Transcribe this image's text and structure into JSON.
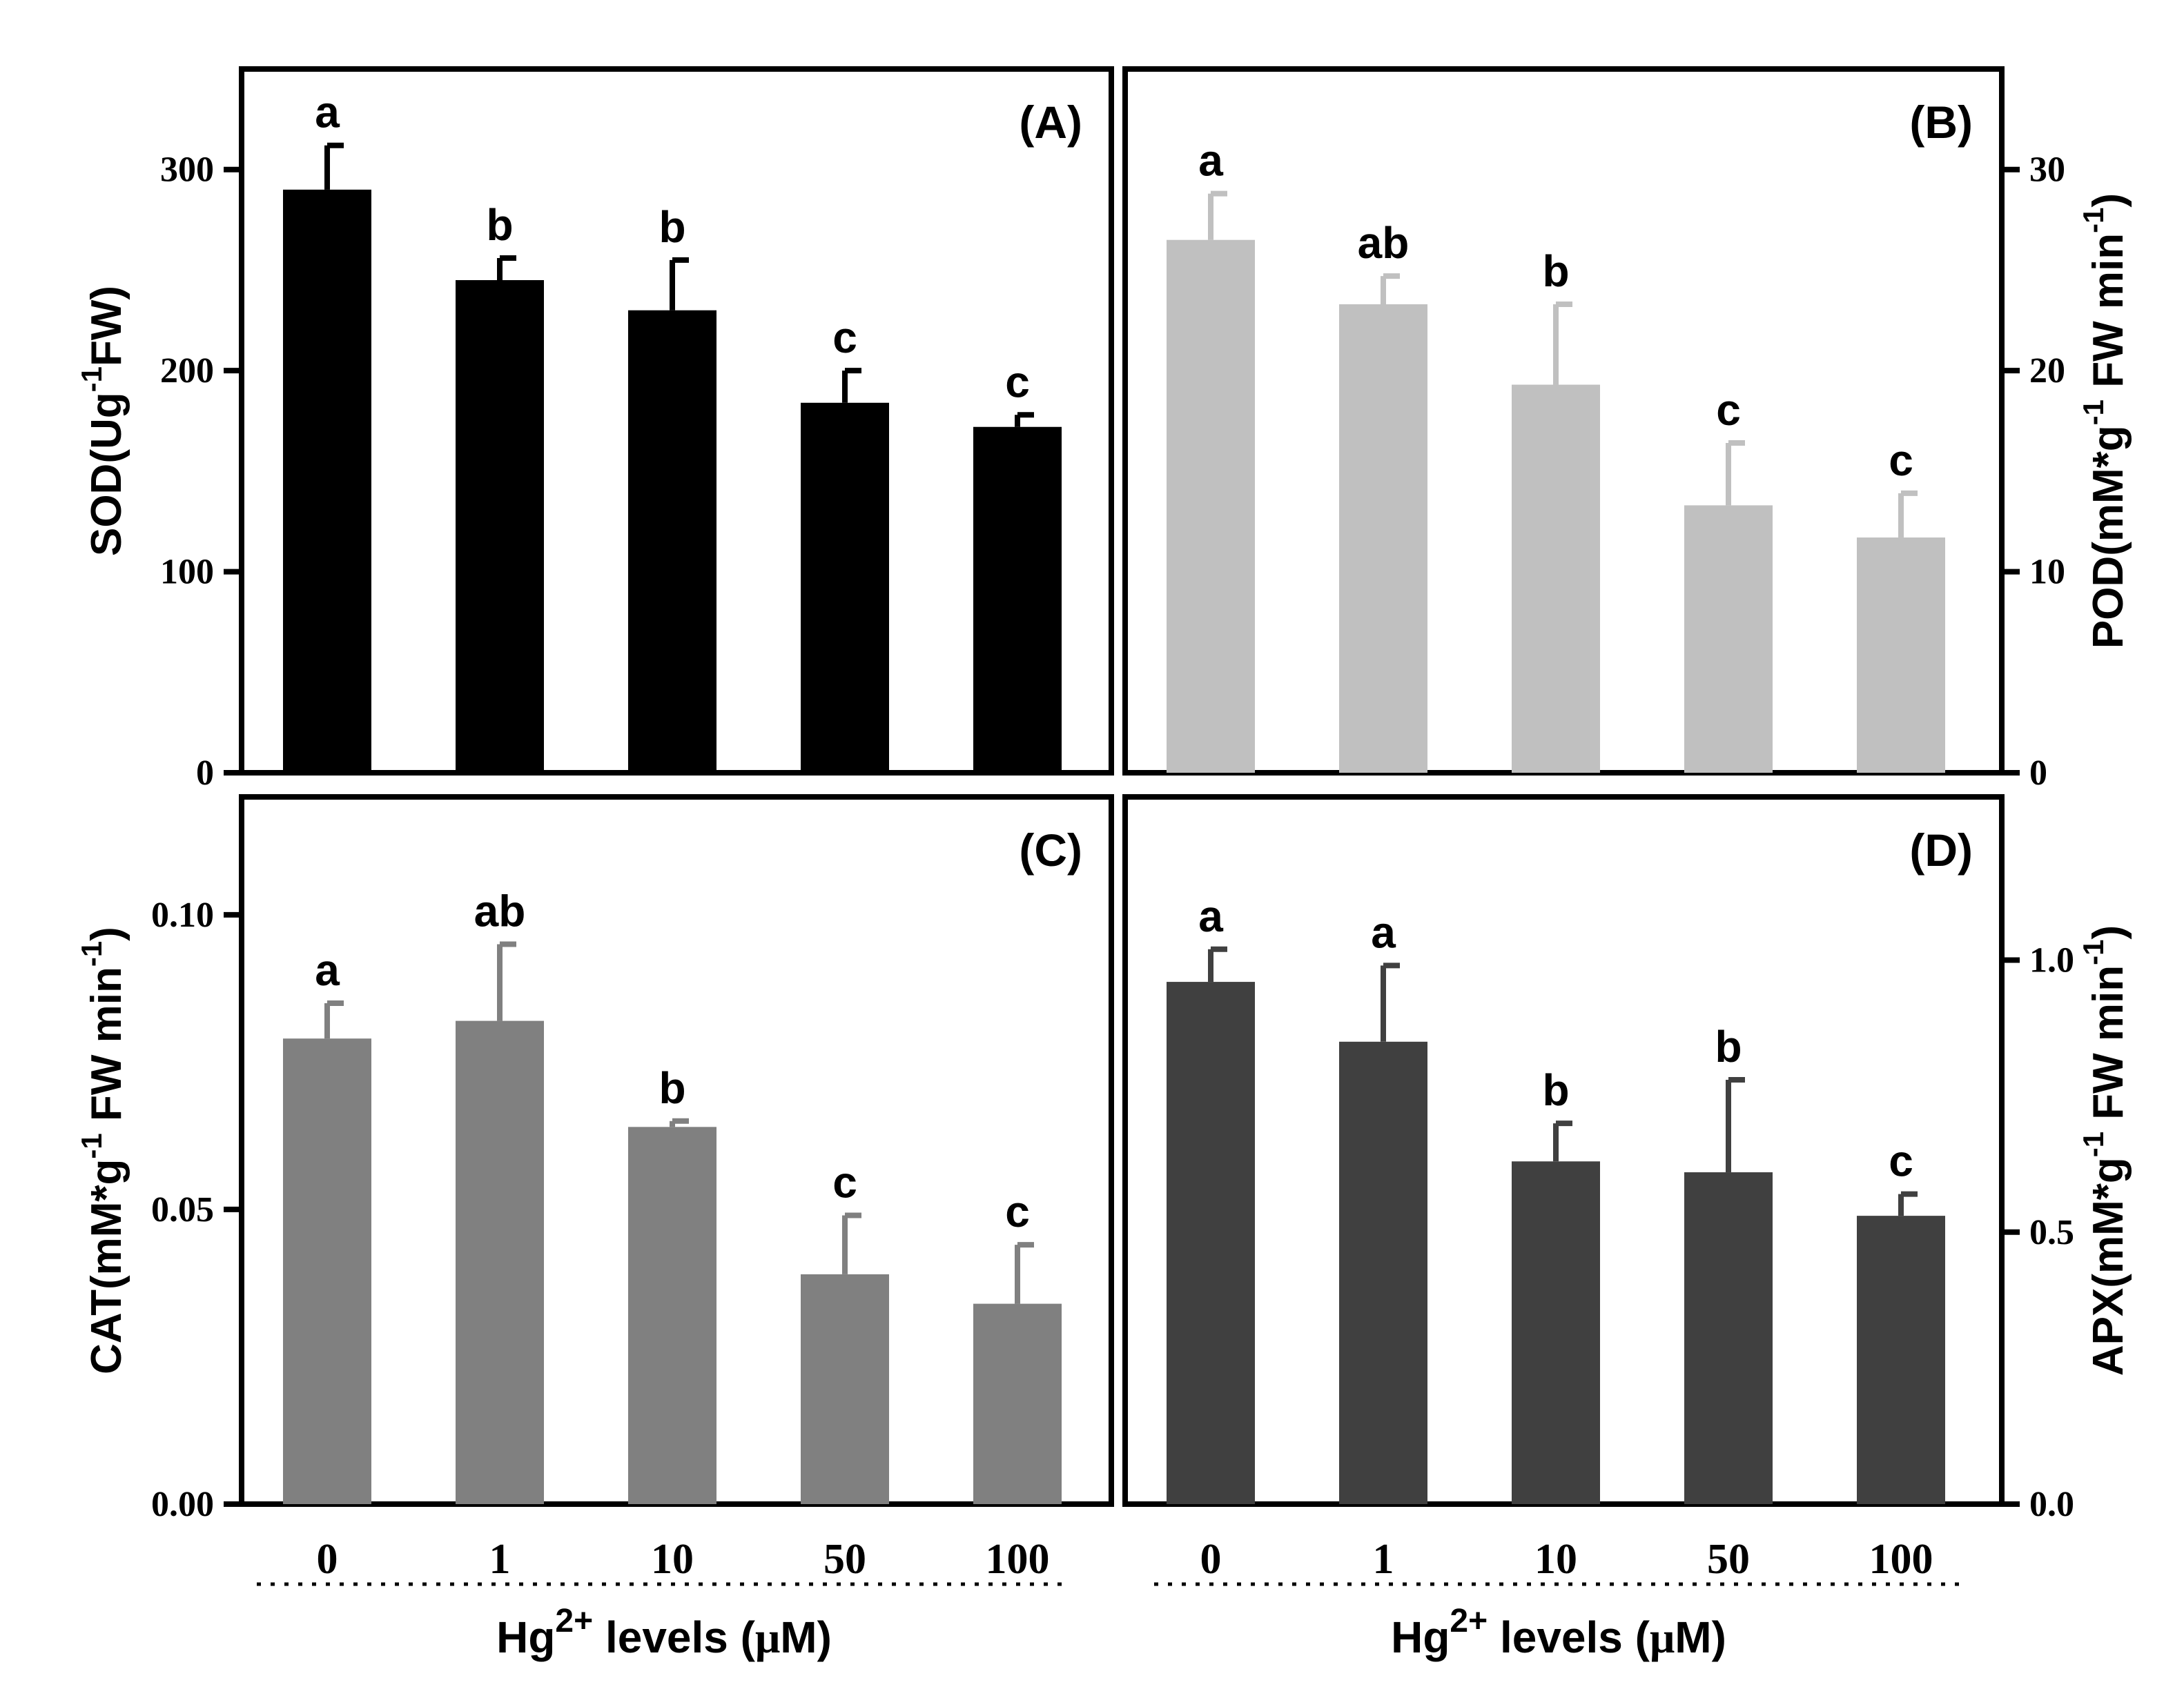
{
  "figure": {
    "xlabel_prefix": "Hg",
    "xlabel_sup": "2+",
    "xlabel_suffix": " levels (",
    "xlabel_mu": "μ",
    "xlabel_unit": "M)"
  },
  "chart_data": [
    {
      "type": "bar",
      "panel_label": "(A)",
      "categories": [
        "0",
        "1",
        "10",
        "50",
        "100"
      ],
      "values": [
        290,
        245,
        230,
        184,
        172
      ],
      "errors": [
        22,
        11,
        25,
        16,
        6
      ],
      "letters": [
        "a",
        "b",
        "b",
        "c",
        "c"
      ],
      "ylim": [
        0,
        350
      ],
      "yticks": [
        0,
        100,
        200,
        300
      ],
      "ytick_labels": [
        "0",
        "100",
        "200",
        "300"
      ],
      "ylabel_parts": [
        {
          "text": "SOD(Ug",
          "sup": false
        },
        {
          "text": "-1",
          "sup": true
        },
        {
          "text": "FW)",
          "sup": false
        }
      ],
      "color": "#000000"
    },
    {
      "type": "bar",
      "panel_label": "(B)",
      "categories": [
        "0",
        "1",
        "10",
        "50",
        "100"
      ],
      "values": [
        26.5,
        23.3,
        19.3,
        13.3,
        11.7
      ],
      "errors": [
        2.3,
        1.4,
        4.0,
        3.1,
        2.2
      ],
      "letters": [
        "a",
        "ab",
        "b",
        "c",
        "c"
      ],
      "ylim": [
        0,
        35
      ],
      "yticks": [
        0,
        10,
        20,
        30
      ],
      "ytick_labels": [
        "0",
        "10",
        "20",
        "30"
      ],
      "ylabel_parts": [
        {
          "text": "POD(mM*g",
          "sup": false
        },
        {
          "text": "-1",
          "sup": true
        },
        {
          "text": " FW min",
          "sup": false
        },
        {
          "text": "-1",
          "sup": true
        },
        {
          "text": ")",
          "sup": false
        }
      ],
      "color": "#c0c0c0"
    },
    {
      "type": "bar",
      "panel_label": "(C)",
      "categories": [
        "0",
        "1",
        "10",
        "50",
        "100"
      ],
      "values": [
        0.079,
        0.082,
        0.064,
        0.039,
        0.034
      ],
      "errors": [
        0.006,
        0.013,
        0.001,
        0.01,
        0.01
      ],
      "letters": [
        "a",
        "ab",
        "b",
        "c",
        "c"
      ],
      "ylim": [
        0,
        0.12
      ],
      "yticks": [
        0,
        0.05,
        0.1
      ],
      "ytick_labels": [
        "0.00",
        "0.05",
        "0.10"
      ],
      "ylabel_parts": [
        {
          "text": "CAT(mM*g",
          "sup": false
        },
        {
          "text": "-1",
          "sup": true
        },
        {
          "text": " FW min",
          "sup": false
        },
        {
          "text": "-1",
          "sup": true
        },
        {
          "text": ")",
          "sup": false
        }
      ],
      "color": "#808080"
    },
    {
      "type": "bar",
      "panel_label": "(D)",
      "categories": [
        "0",
        "1",
        "10",
        "50",
        "100"
      ],
      "values": [
        0.96,
        0.85,
        0.63,
        0.61,
        0.53
      ],
      "errors": [
        0.06,
        0.14,
        0.07,
        0.17,
        0.04
      ],
      "letters": [
        "a",
        "a",
        "b",
        "b",
        "c"
      ],
      "ylim": [
        0,
        1.3
      ],
      "yticks": [
        0,
        0.5,
        1.0
      ],
      "ytick_labels": [
        "0.0",
        "0.5",
        "1.0"
      ],
      "ylabel_parts": [
        {
          "text": "APX(mM*g",
          "sup": false
        },
        {
          "text": "-1",
          "sup": true
        },
        {
          "text": " FW min",
          "sup": false
        },
        {
          "text": "-1",
          "sup": true
        },
        {
          "text": ")",
          "sup": false
        }
      ],
      "color": "#404040"
    }
  ]
}
